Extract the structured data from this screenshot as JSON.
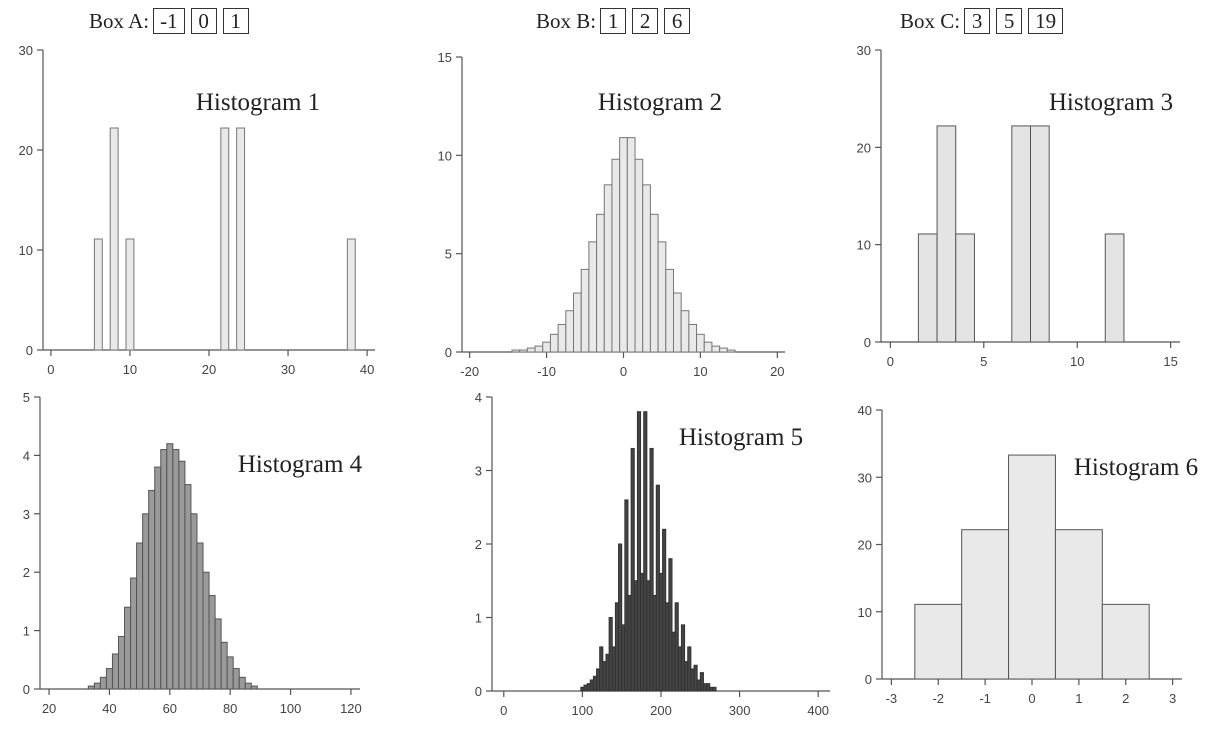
{
  "boxes": [
    {
      "label": "Box A:",
      "values": [
        "-1",
        "0",
        "1"
      ]
    },
    {
      "label": "Box B:",
      "values": [
        "1",
        "2",
        "6"
      ]
    },
    {
      "label": "Box C:",
      "values": [
        "3",
        "5",
        "19"
      ]
    }
  ],
  "chart_data": [
    {
      "type": "bar",
      "title": "Histogram 1",
      "xlim": [
        -1,
        41
      ],
      "ylim": [
        0,
        30
      ],
      "xticks": [
        0,
        10,
        20,
        30,
        40
      ],
      "yticks": [
        0,
        10,
        20,
        30
      ],
      "bin_width": 1,
      "bins": [
        {
          "x": 6,
          "y": 11.1
        },
        {
          "x": 8,
          "y": 22.2
        },
        {
          "x": 10,
          "y": 11.1
        },
        {
          "x": 22,
          "y": 22.2
        },
        {
          "x": 24,
          "y": 22.2
        },
        {
          "x": 38,
          "y": 11.1
        }
      ]
    },
    {
      "type": "bar",
      "title": "Histogram 2",
      "xlim": [
        -21,
        21
      ],
      "ylim": [
        0,
        15
      ],
      "xticks": [
        -20,
        -10,
        0,
        10,
        20
      ],
      "yticks": [
        0,
        5,
        10,
        15
      ],
      "bin_width": 1,
      "bins": [
        {
          "x": -14,
          "y": 0.1
        },
        {
          "x": -13,
          "y": 0.1
        },
        {
          "x": -12,
          "y": 0.2
        },
        {
          "x": -11,
          "y": 0.3
        },
        {
          "x": -10,
          "y": 0.5
        },
        {
          "x": -9,
          "y": 0.9
        },
        {
          "x": -8,
          "y": 1.4
        },
        {
          "x": -7,
          "y": 2.1
        },
        {
          "x": -6,
          "y": 3.0
        },
        {
          "x": -5,
          "y": 4.2
        },
        {
          "x": -4,
          "y": 5.6
        },
        {
          "x": -3,
          "y": 7.0
        },
        {
          "x": -2,
          "y": 8.5
        },
        {
          "x": -1,
          "y": 9.8
        },
        {
          "x": 0,
          "y": 10.9
        },
        {
          "x": 1,
          "y": 10.9
        },
        {
          "x": 2,
          "y": 9.8
        },
        {
          "x": 3,
          "y": 8.5
        },
        {
          "x": 4,
          "y": 7.0
        },
        {
          "x": 5,
          "y": 5.6
        },
        {
          "x": 6,
          "y": 4.2
        },
        {
          "x": 7,
          "y": 3.0
        },
        {
          "x": 8,
          "y": 2.1
        },
        {
          "x": 9,
          "y": 1.4
        },
        {
          "x": 10,
          "y": 0.9
        },
        {
          "x": 11,
          "y": 0.5
        },
        {
          "x": 12,
          "y": 0.3
        },
        {
          "x": 13,
          "y": 0.2
        },
        {
          "x": 14,
          "y": 0.1
        }
      ]
    },
    {
      "type": "bar",
      "title": "Histogram 3",
      "xlim": [
        -0.5,
        15.5
      ],
      "ylim": [
        0,
        30
      ],
      "xticks": [
        0,
        5,
        10,
        15
      ],
      "yticks": [
        0,
        10,
        20,
        30
      ],
      "bin_width": 1,
      "bins": [
        {
          "x": 2,
          "y": 11.1
        },
        {
          "x": 3,
          "y": 22.2
        },
        {
          "x": 4,
          "y": 11.1
        },
        {
          "x": 7,
          "y": 22.2
        },
        {
          "x": 8,
          "y": 22.2
        },
        {
          "x": 12,
          "y": 11.1
        }
      ]
    },
    {
      "type": "bar",
      "title": "Histogram 4",
      "xlim": [
        17,
        123
      ],
      "ylim": [
        0,
        5
      ],
      "xticks": [
        20,
        40,
        60,
        80,
        100,
        120
      ],
      "yticks": [
        0,
        1,
        2,
        3,
        4,
        5
      ],
      "bin_width": 2,
      "bins": [
        {
          "x": 34,
          "y": 0.05
        },
        {
          "x": 36,
          "y": 0.1
        },
        {
          "x": 38,
          "y": 0.2
        },
        {
          "x": 40,
          "y": 0.35
        },
        {
          "x": 42,
          "y": 0.6
        },
        {
          "x": 44,
          "y": 0.9
        },
        {
          "x": 46,
          "y": 1.4
        },
        {
          "x": 48,
          "y": 1.9
        },
        {
          "x": 50,
          "y": 2.5
        },
        {
          "x": 52,
          "y": 3.0
        },
        {
          "x": 54,
          "y": 3.4
        },
        {
          "x": 56,
          "y": 3.8
        },
        {
          "x": 58,
          "y": 4.1
        },
        {
          "x": 60,
          "y": 4.2
        },
        {
          "x": 62,
          "y": 4.1
        },
        {
          "x": 64,
          "y": 3.9
        },
        {
          "x": 66,
          "y": 3.5
        },
        {
          "x": 68,
          "y": 3.0
        },
        {
          "x": 70,
          "y": 2.5
        },
        {
          "x": 72,
          "y": 2.0
        },
        {
          "x": 74,
          "y": 1.6
        },
        {
          "x": 76,
          "y": 1.2
        },
        {
          "x": 78,
          "y": 0.8
        },
        {
          "x": 80,
          "y": 0.55
        },
        {
          "x": 82,
          "y": 0.35
        },
        {
          "x": 84,
          "y": 0.2
        },
        {
          "x": 86,
          "y": 0.1
        },
        {
          "x": 88,
          "y": 0.05
        }
      ]
    },
    {
      "type": "bar",
      "title": "Histogram 5",
      "xlim": [
        -15,
        415
      ],
      "ylim": [
        0,
        4
      ],
      "xticks": [
        0,
        100,
        200,
        300,
        400
      ],
      "yticks": [
        0,
        1,
        2,
        3,
        4
      ],
      "bin_width": 4,
      "bins": [
        {
          "x": 100,
          "y": 0.05
        },
        {
          "x": 104,
          "y": 0.08
        },
        {
          "x": 108,
          "y": 0.1
        },
        {
          "x": 112,
          "y": 0.15
        },
        {
          "x": 116,
          "y": 0.2
        },
        {
          "x": 120,
          "y": 0.3
        },
        {
          "x": 124,
          "y": 0.6
        },
        {
          "x": 128,
          "y": 0.4
        },
        {
          "x": 132,
          "y": 0.5
        },
        {
          "x": 136,
          "y": 1.0
        },
        {
          "x": 140,
          "y": 0.6
        },
        {
          "x": 144,
          "y": 1.2
        },
        {
          "x": 148,
          "y": 2.0
        },
        {
          "x": 152,
          "y": 0.9
        },
        {
          "x": 156,
          "y": 2.6
        },
        {
          "x": 160,
          "y": 1.3
        },
        {
          "x": 164,
          "y": 3.3
        },
        {
          "x": 168,
          "y": 1.5
        },
        {
          "x": 172,
          "y": 3.8
        },
        {
          "x": 176,
          "y": 1.6
        },
        {
          "x": 180,
          "y": 3.8
        },
        {
          "x": 184,
          "y": 1.5
        },
        {
          "x": 188,
          "y": 3.3
        },
        {
          "x": 192,
          "y": 1.3
        },
        {
          "x": 196,
          "y": 2.8
        },
        {
          "x": 200,
          "y": 1.6
        },
        {
          "x": 204,
          "y": 2.2
        },
        {
          "x": 208,
          "y": 1.2
        },
        {
          "x": 212,
          "y": 1.8
        },
        {
          "x": 216,
          "y": 0.8
        },
        {
          "x": 220,
          "y": 1.2
        },
        {
          "x": 224,
          "y": 0.6
        },
        {
          "x": 228,
          "y": 0.9
        },
        {
          "x": 232,
          "y": 0.4
        },
        {
          "x": 236,
          "y": 0.6
        },
        {
          "x": 240,
          "y": 0.3
        },
        {
          "x": 244,
          "y": 0.35
        },
        {
          "x": 248,
          "y": 0.15
        },
        {
          "x": 252,
          "y": 0.25
        },
        {
          "x": 256,
          "y": 0.1
        },
        {
          "x": 260,
          "y": 0.1
        },
        {
          "x": 264,
          "y": 0.05
        },
        {
          "x": 268,
          "y": 0.05
        }
      ]
    },
    {
      "type": "bar",
      "title": "Histogram 6",
      "xlim": [
        -3.2,
        3.2
      ],
      "ylim": [
        0,
        40
      ],
      "xticks": [
        -3,
        -2,
        -1,
        0,
        1,
        2,
        3
      ],
      "yticks": [
        0,
        10,
        20,
        30,
        40
      ],
      "bin_width": 1,
      "bins": [
        {
          "x": -2,
          "y": 11.1
        },
        {
          "x": -1,
          "y": 22.2
        },
        {
          "x": 0,
          "y": 33.3
        },
        {
          "x": 1,
          "y": 22.2
        },
        {
          "x": 2,
          "y": 11.1
        }
      ]
    }
  ]
}
